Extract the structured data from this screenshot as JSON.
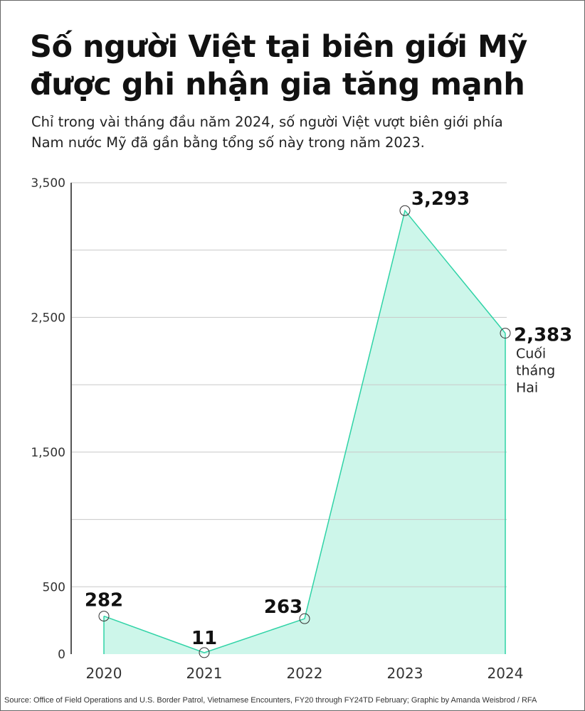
{
  "title": "Số người Việt tại biên giới Mỹ được ghi nhận gia tăng mạnh",
  "subtitle": "Chỉ trong vài tháng đầu năm 2024, số người Việt vượt biên giới phía Nam nước Mỹ đã gần bằng tổng số này trong năm 2023.",
  "source": "Source: Office of Field Operations and U.S. Border Patrol, Vietnamese Encounters, FY20 through FY24TD February; Graphic by Amanda Weisbrod / RFA",
  "colors": {
    "line": "#2fd3a6",
    "fill": "#cdf6ea",
    "grid": "#c8c8c8",
    "axis": "#555555"
  },
  "chart_data": {
    "type": "area",
    "title": "Số người Việt tại biên giới Mỹ được ghi nhận gia tăng mạnh",
    "categories": [
      "2020",
      "2021",
      "2022",
      "2023",
      "2024"
    ],
    "values": [
      282,
      11,
      263,
      3293,
      2383
    ],
    "data_labels": [
      "282",
      "11",
      "263",
      "3,293",
      "2,383"
    ],
    "annotation": "Cuối tháng Hai",
    "annotation_lines": [
      "Cuối",
      "tháng",
      "Hai"
    ],
    "ylim": [
      0,
      3500
    ],
    "y_ticks": [
      0,
      500,
      1500,
      2500,
      3500
    ],
    "y_tick_labels": [
      "0",
      "500",
      "1,500",
      "2,500",
      "3,500"
    ],
    "gridlines": [
      500,
      1000,
      1500,
      2000,
      2500,
      3000,
      3500
    ],
    "grid": true,
    "legend": "none"
  }
}
